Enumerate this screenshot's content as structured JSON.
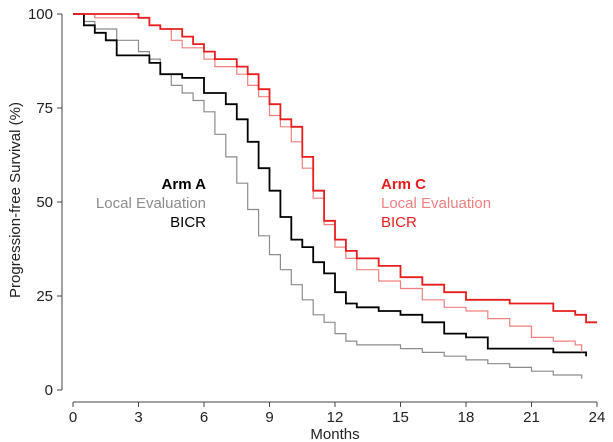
{
  "chart_data": {
    "type": "line",
    "title": "",
    "xlabel": "Months",
    "ylabel": "Progression-free Survival (%)",
    "xlim": [
      0,
      24
    ],
    "ylim": [
      0,
      100
    ],
    "x_ticks": [
      "0",
      "3",
      "6",
      "9",
      "12",
      "15",
      "18",
      "21",
      "24"
    ],
    "y_ticks": [
      "0",
      "25",
      "50",
      "75",
      "100"
    ],
    "grid": false,
    "step": true,
    "legend_groups": [
      {
        "title": "Arm A",
        "title_color": "#000000",
        "entries": [
          {
            "label": "Local Evaluation",
            "color": "#8c8c8c"
          },
          {
            "label": "BICR",
            "color": "#000000"
          }
        ]
      },
      {
        "title": "Arm C",
        "title_color": "#e81e1e",
        "entries": [
          {
            "label": "Local Evaluation",
            "color": "#f08080"
          },
          {
            "label": "BICR",
            "color": "#e81e1e"
          }
        ]
      }
    ],
    "series": [
      {
        "color": "#8c8c8c",
        "width": 1.2,
        "x": [
          0,
          0.5,
          1,
          2,
          3,
          3.5,
          4,
          4.5,
          5,
          5.5,
          6,
          6.5,
          7,
          7.5,
          8,
          8.5,
          9,
          9.5,
          10,
          10.5,
          11,
          11.5,
          12,
          12.5,
          13,
          14,
          15,
          16,
          17,
          18,
          19,
          20,
          21,
          22,
          23,
          23.3
        ],
        "y": [
          100,
          98,
          96,
          93,
          90,
          88,
          84,
          81,
          79,
          77,
          74,
          68,
          62,
          55,
          48,
          41,
          36,
          32,
          28,
          24,
          20,
          18,
          15,
          13,
          12,
          12,
          11,
          10,
          9,
          8,
          7,
          6,
          5,
          4,
          4,
          3
        ]
      },
      {
        "color": "#000000",
        "width": 1.8,
        "x": [
          0,
          0.5,
          1,
          1.5,
          2,
          3,
          3.5,
          4,
          5,
          6,
          6.5,
          7,
          7.5,
          8,
          8.5,
          9,
          9.5,
          10,
          10.5,
          11,
          11.5,
          12,
          12.5,
          13,
          14,
          15,
          16,
          17,
          18,
          19,
          20,
          21,
          22,
          23,
          23.5
        ],
        "y": [
          100,
          97,
          95,
          93,
          89,
          89,
          87,
          84,
          83,
          79,
          79,
          76,
          72,
          66,
          59,
          53,
          46,
          40,
          38,
          34,
          31,
          26,
          23,
          22,
          21,
          20,
          18,
          15,
          14,
          11,
          11,
          11,
          10,
          10,
          9
        ]
      },
      {
        "color": "#f08080",
        "width": 1.2,
        "x": [
          0,
          1,
          2,
          3,
          3.5,
          4,
          4.5,
          5,
          6,
          6.5,
          7,
          7.5,
          8,
          8.5,
          9,
          9.5,
          10,
          10.5,
          11,
          11.5,
          12,
          12.5,
          13,
          14,
          15,
          16,
          17,
          18,
          19,
          20,
          21,
          22,
          23,
          23.3
        ],
        "y": [
          100,
          99,
          99,
          99,
          97,
          96,
          93,
          91,
          88,
          86,
          86,
          84,
          81,
          78,
          73,
          70,
          66,
          59,
          51,
          44,
          38,
          35,
          32,
          29,
          27,
          24,
          22,
          21,
          19,
          17,
          14,
          13,
          12,
          10
        ]
      },
      {
        "color": "#e81e1e",
        "width": 1.8,
        "x": [
          0,
          1,
          2,
          3,
          3.5,
          4,
          5,
          5.5,
          6,
          6.5,
          7,
          7.5,
          8,
          8.5,
          9,
          9.5,
          10,
          10.5,
          11,
          11.5,
          12,
          12.5,
          13,
          14,
          15,
          16,
          17,
          18,
          19,
          20,
          21,
          22,
          23,
          23.5,
          24
        ],
        "y": [
          100,
          100,
          100,
          99,
          97,
          96,
          94,
          92,
          90,
          88,
          88,
          86,
          84,
          80,
          76,
          72,
          70,
          62,
          53,
          45,
          40,
          37,
          35,
          33,
          30,
          28,
          26,
          24,
          24,
          23,
          23,
          21,
          20,
          18,
          18
        ]
      }
    ]
  }
}
